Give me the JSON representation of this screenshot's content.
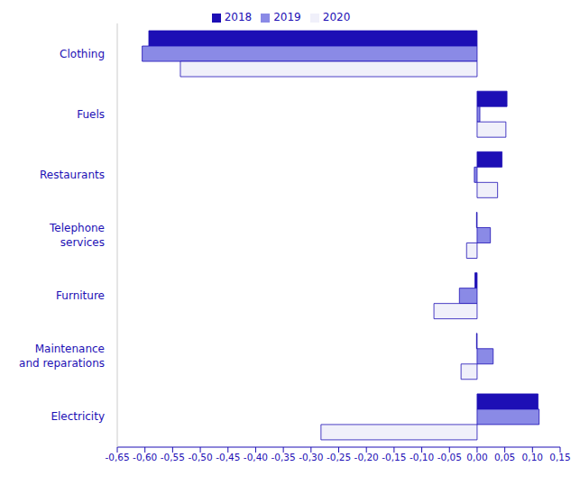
{
  "chart_data": {
    "type": "bar",
    "orientation": "horizontal",
    "grid": false,
    "legend": "top",
    "categories": [
      "Clothing",
      "Fuels",
      "Restaurants",
      "Telephone services",
      "Furniture",
      "Maintenance and reparations",
      "Electricity"
    ],
    "series": [
      {
        "name": "2018",
        "color": "#1d0fb5",
        "values": [
          -0.593,
          0.054,
          0.045,
          -0.001,
          -0.004,
          -0.001,
          0.11
        ]
      },
      {
        "name": "2019",
        "color": "#8a8ae6",
        "values": [
          -0.605,
          0.005,
          -0.005,
          0.024,
          -0.032,
          0.029,
          0.112
        ]
      },
      {
        "name": "2020",
        "color": "#f0f0fa",
        "values": [
          -0.536,
          0.052,
          0.037,
          -0.019,
          -0.078,
          -0.029,
          -0.282
        ]
      }
    ],
    "xlim": [
      -0.65,
      0.15
    ],
    "xticks": [
      {
        "value": -0.65,
        "label": "-0,65"
      },
      {
        "value": -0.6,
        "label": "-0,60"
      },
      {
        "value": -0.55,
        "label": "-0,55"
      },
      {
        "value": -0.5,
        "label": "-0,50"
      },
      {
        "value": -0.45,
        "label": "-0,45"
      },
      {
        "value": -0.4,
        "label": "-0,40"
      },
      {
        "value": -0.35,
        "label": "-0,35"
      },
      {
        "value": -0.3,
        "label": "-0,30"
      },
      {
        "value": -0.25,
        "label": "-0,25"
      },
      {
        "value": -0.2,
        "label": "-0,20"
      },
      {
        "value": -0.15,
        "label": "-0,15"
      },
      {
        "value": -0.1,
        "label": "-0,10"
      },
      {
        "value": -0.05,
        "label": "-0,05"
      },
      {
        "value": 0,
        "label": "0,00"
      },
      {
        "value": 0.05,
        "label": "0,05"
      },
      {
        "value": 0.1,
        "label": "0,10"
      },
      {
        "value": 0.15,
        "label": "0,15"
      }
    ]
  }
}
